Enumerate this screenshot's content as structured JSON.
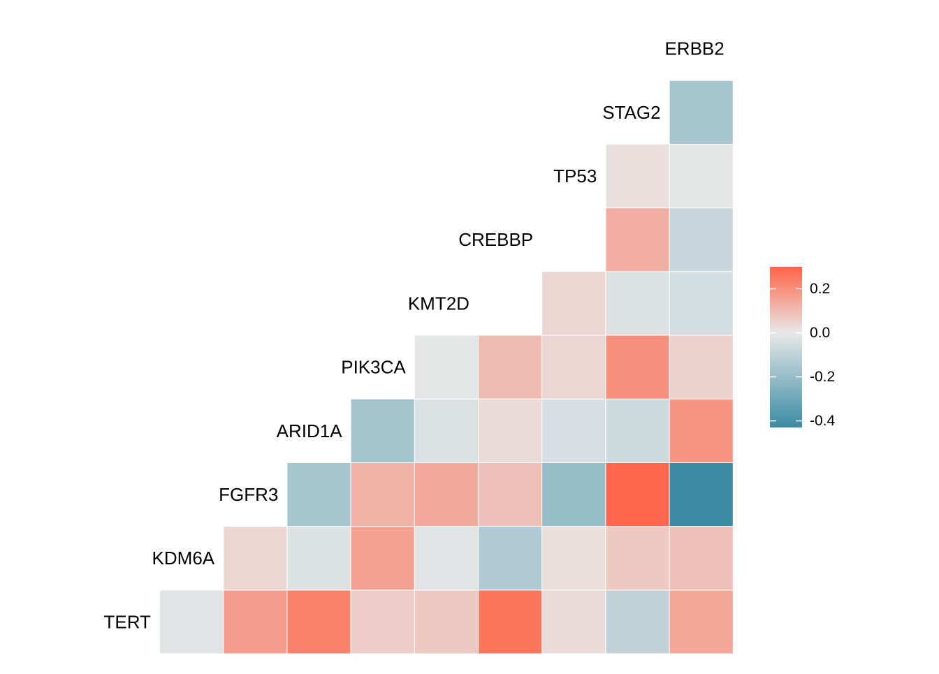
{
  "chart_data": {
    "type": "heatmap",
    "title": "",
    "xlabel": "",
    "ylabel": "",
    "genes": [
      "TERT",
      "KDM6A",
      "FGFR3",
      "ARID1A",
      "PIK3CA",
      "KMT2D",
      "CREBBP",
      "TP53",
      "STAG2",
      "ERBB2"
    ],
    "correlations": [
      [
        null,
        null,
        null,
        null,
        null,
        null,
        null,
        null,
        null,
        null
      ],
      [
        -0.02,
        null,
        null,
        null,
        null,
        null,
        null,
        null,
        null,
        null
      ],
      [
        0.17,
        0.04,
        null,
        null,
        null,
        null,
        null,
        null,
        null,
        null
      ],
      [
        0.23,
        -0.03,
        -0.16,
        null,
        null,
        null,
        null,
        null,
        null,
        null
      ],
      [
        0.06,
        0.16,
        0.12,
        -0.17,
        null,
        null,
        null,
        null,
        null,
        null
      ],
      [
        0.07,
        -0.02,
        0.14,
        -0.03,
        -0.01,
        null,
        null,
        null,
        null,
        null
      ],
      [
        0.26,
        -0.14,
        0.09,
        0.03,
        0.1,
        null,
        null,
        null,
        null,
        null
      ],
      [
        0.03,
        0.02,
        -0.2,
        -0.04,
        0.04,
        0.04,
        null,
        null,
        null,
        null
      ],
      [
        -0.1,
        0.07,
        0.29,
        -0.07,
        0.2,
        -0.03,
        0.13,
        0.02,
        null,
        null
      ],
      [
        0.15,
        0.09,
        -0.43,
        0.19,
        0.05,
        -0.05,
        -0.08,
        -0.01,
        -0.16,
        null
      ]
    ],
    "color_scale": {
      "low": "#3A8BA3",
      "mid": "#E8E8E8",
      "high": "#FF6347",
      "min": -0.43,
      "max": 0.3
    },
    "legend": {
      "placement": "right",
      "ticks": [
        {
          "value": 0.2,
          "label": "0.2"
        },
        {
          "value": 0.0,
          "label": "0.0"
        },
        {
          "value": -0.2,
          "label": "-0.2"
        },
        {
          "value": -0.4,
          "label": "-0.4"
        }
      ]
    }
  }
}
